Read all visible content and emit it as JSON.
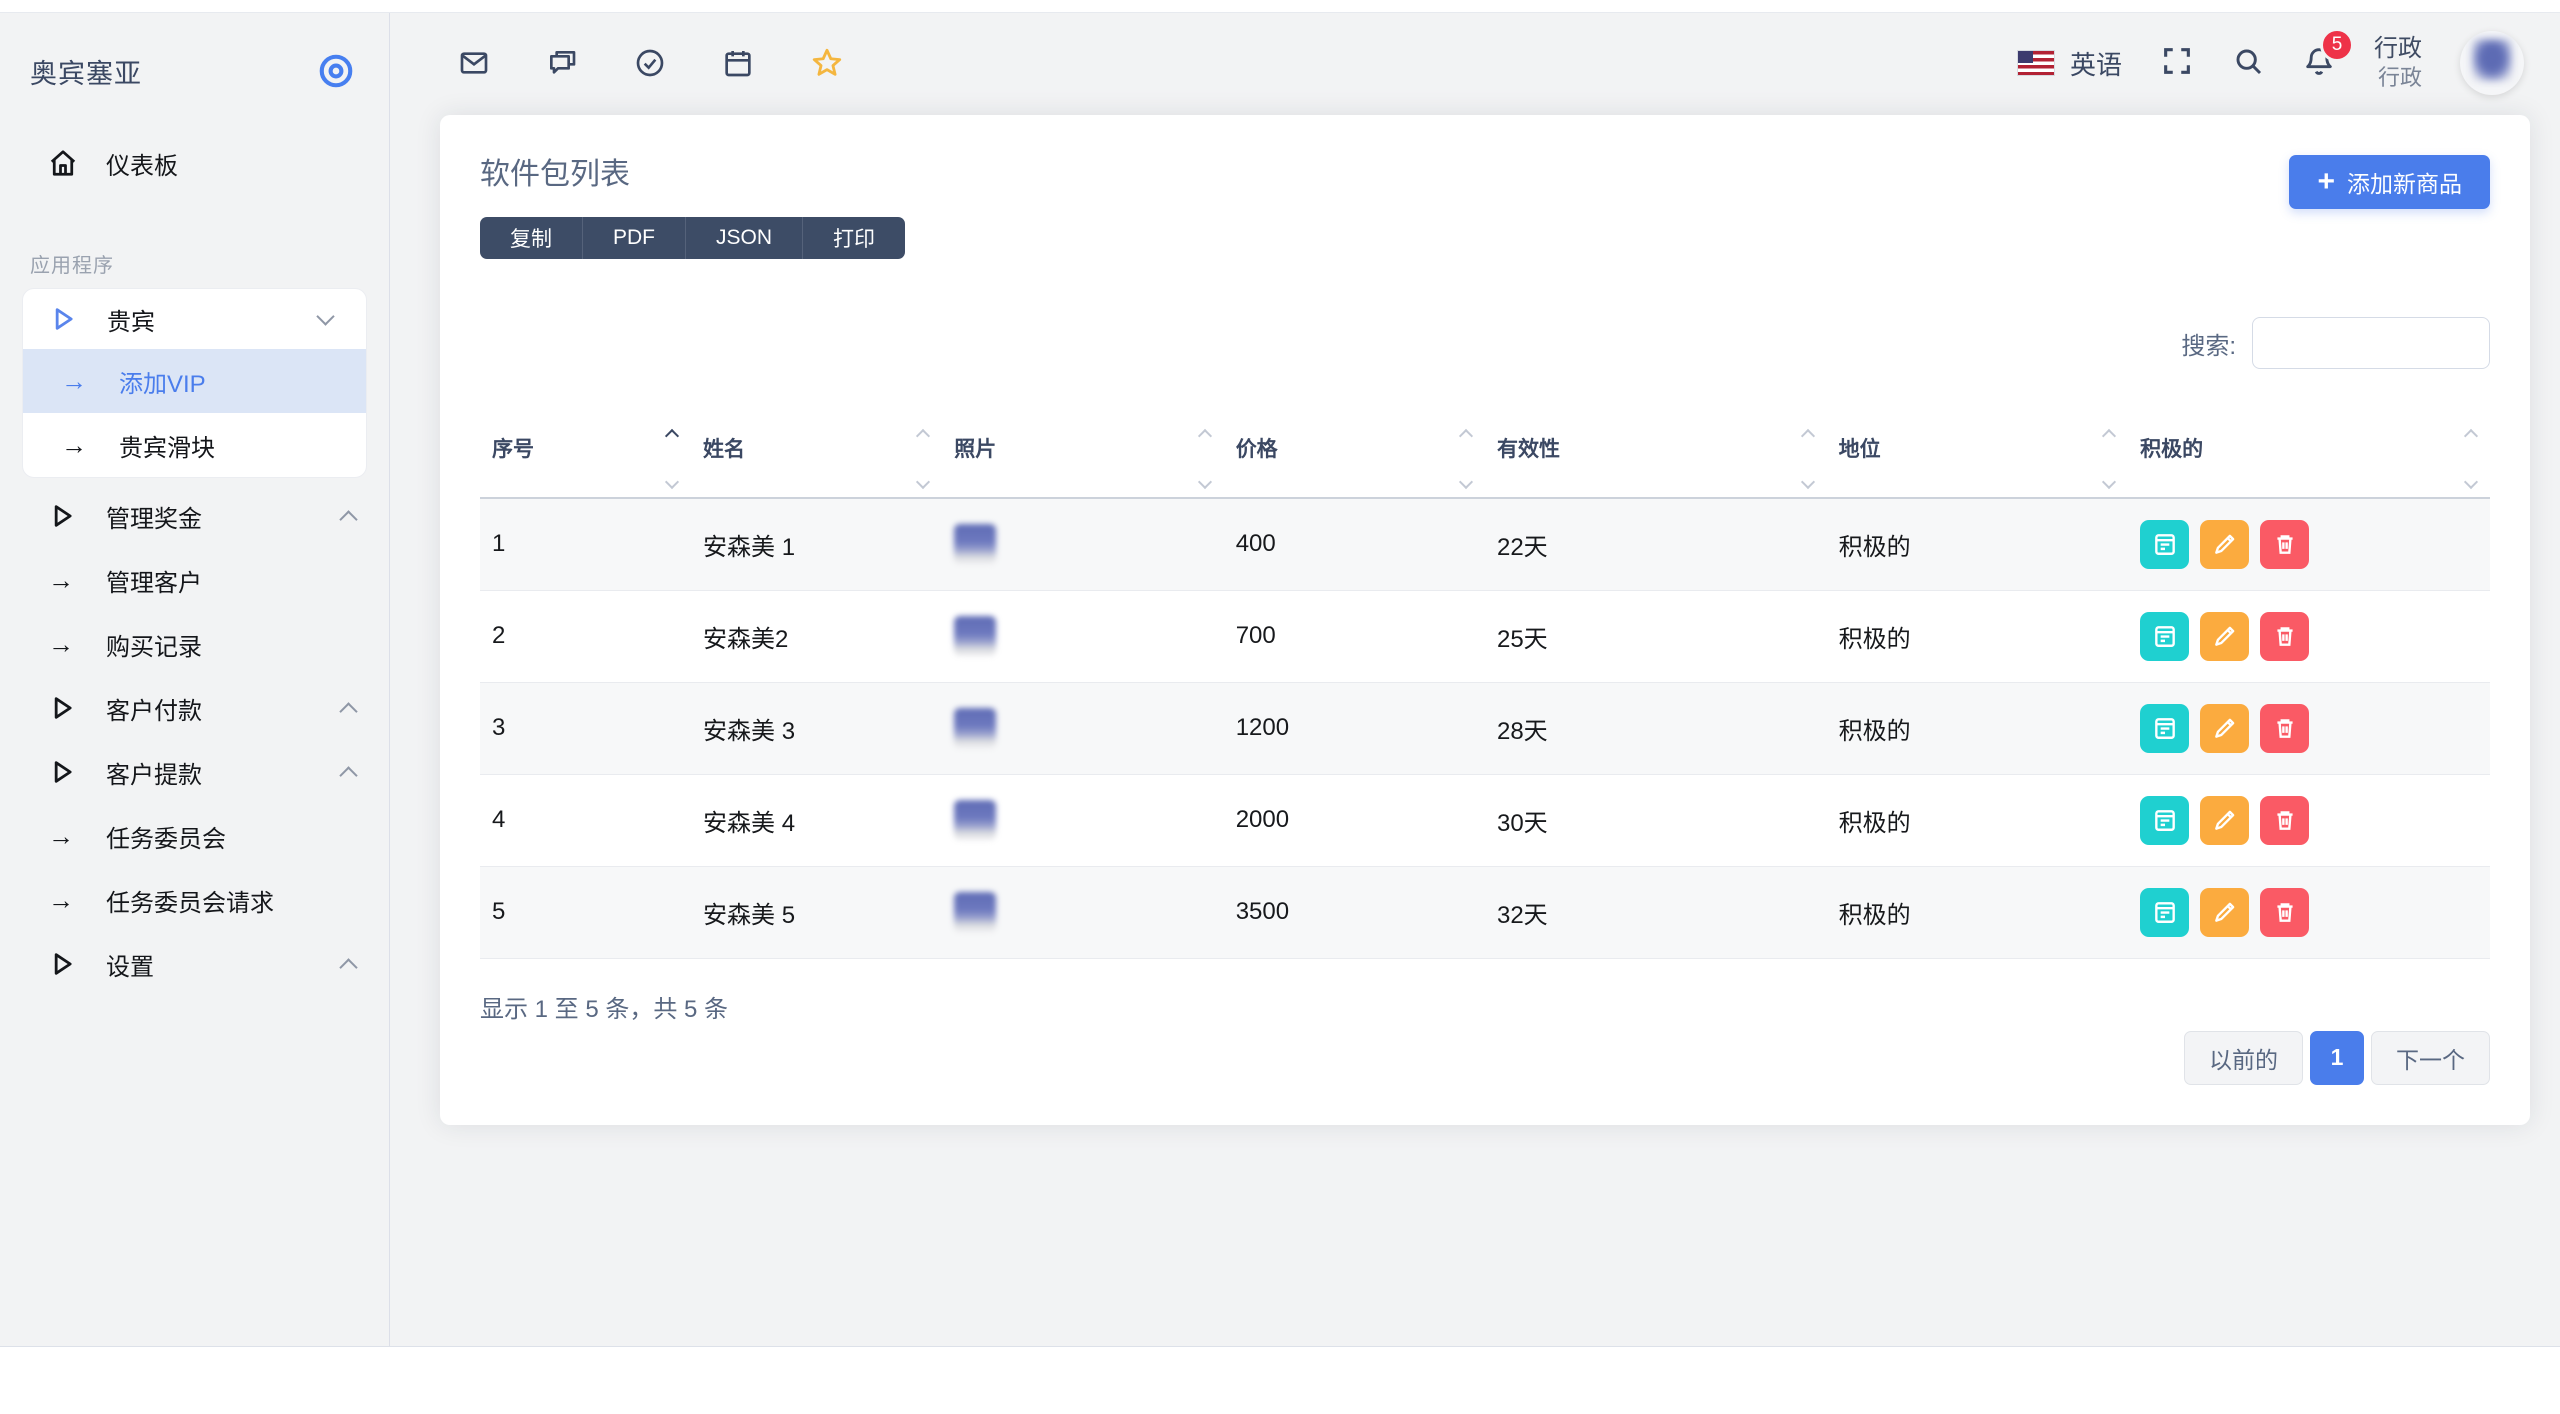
{
  "brand": {
    "name": "奥宾塞亚"
  },
  "sidebar": {
    "dashboard_label": "仪表板",
    "section_label": "应用程序",
    "vip_group": {
      "label": "贵宾",
      "children": [
        {
          "label": "添加VIP",
          "active": true
        },
        {
          "label": "贵宾滑块",
          "active": false
        }
      ]
    },
    "items": [
      {
        "label": "管理奖金"
      },
      {
        "label": "管理客户"
      },
      {
        "label": "购买记录"
      },
      {
        "label": "客户付款"
      },
      {
        "label": "客户提款"
      },
      {
        "label": "任务委员会"
      },
      {
        "label": "任务委员会请求"
      },
      {
        "label": "设置"
      }
    ]
  },
  "header": {
    "language": "英语",
    "notification_count": "5",
    "user": {
      "name": "行政",
      "role": "行政"
    }
  },
  "card": {
    "title": "软件包列表",
    "export_buttons": [
      {
        "label": "复制"
      },
      {
        "label": "PDF"
      },
      {
        "label": "JSON"
      },
      {
        "label": "打印"
      }
    ],
    "add_button_label": "添加新商品",
    "search_label": "搜索:",
    "table": {
      "columns": [
        {
          "label": "序号"
        },
        {
          "label": "姓名"
        },
        {
          "label": "照片"
        },
        {
          "label": "价格"
        },
        {
          "label": "有效性"
        },
        {
          "label": "地位"
        },
        {
          "label": "积极的"
        }
      ],
      "rows": [
        {
          "sn": "1",
          "name": "安森美 1",
          "price": "400",
          "validity": "22天",
          "status": "积极的"
        },
        {
          "sn": "2",
          "name": "安森美2",
          "price": "700",
          "validity": "25天",
          "status": "积极的"
        },
        {
          "sn": "3",
          "name": "安森美 3",
          "price": "1200",
          "validity": "28天",
          "status": "积极的"
        },
        {
          "sn": "4",
          "name": "安森美 4",
          "price": "2000",
          "validity": "30天",
          "status": "积极的"
        },
        {
          "sn": "5",
          "name": "安森美 5",
          "price": "3500",
          "validity": "32天",
          "status": "积极的"
        }
      ]
    },
    "footer": {
      "summary": "显示 1 至 5 条，共 5 条",
      "pagination": {
        "prev": "以前的",
        "page": "1",
        "next": "下一个"
      }
    }
  },
  "colors": {
    "accent_blue": "#4a7dec",
    "dark_slate": "#3b4863",
    "export_btn_bg": "#3d4c66",
    "active_item_bg": "#dbe5f6",
    "teal_action": "#1fd0d0",
    "orange_action": "#fbab3f",
    "red_action": "#fa5a65",
    "badge_red": "#ee3248"
  }
}
